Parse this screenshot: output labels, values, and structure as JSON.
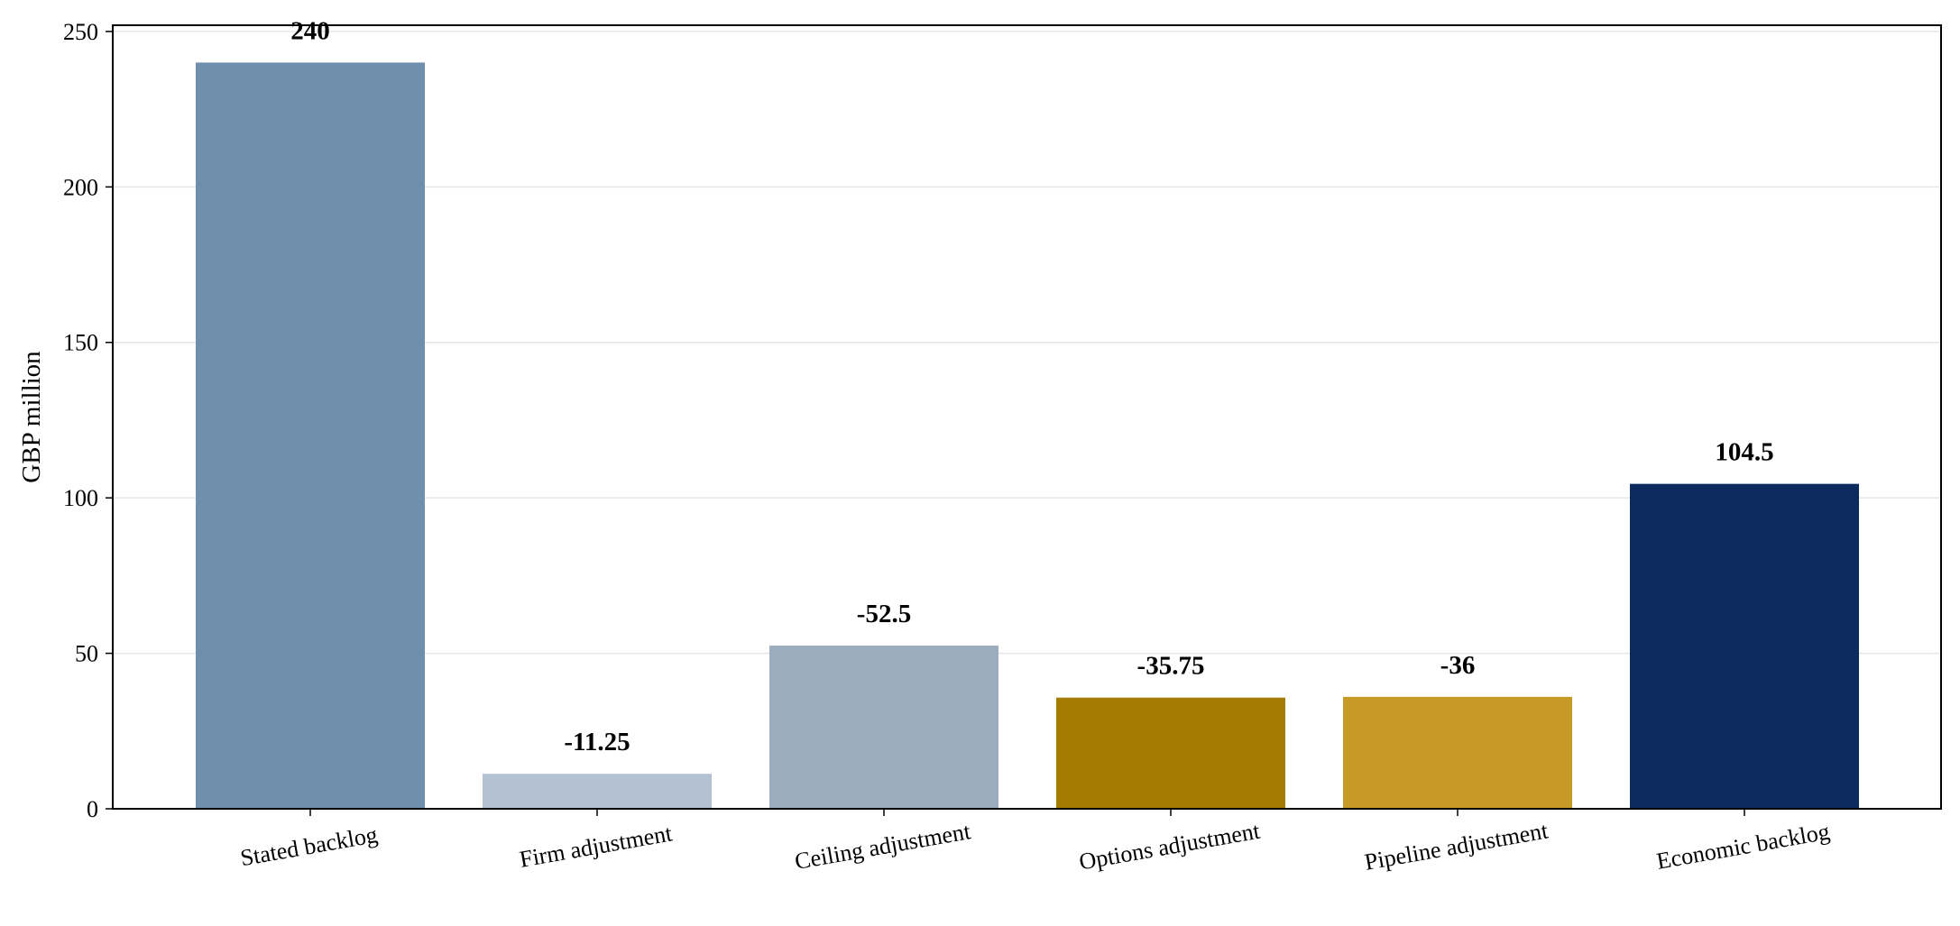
{
  "chart_data": {
    "type": "bar",
    "title": "",
    "xlabel": "",
    "ylabel": "GBP million",
    "ylim": [
      0,
      252
    ],
    "yticks": [
      0,
      50,
      100,
      150,
      200,
      250
    ],
    "grid": "horizontal",
    "categories": [
      "Stated backlog",
      "Firm adjustment",
      "Ceiling adjustment",
      "Options adjustment",
      "Pipeline adjustment",
      "Economic backlog"
    ],
    "values": [
      240,
      11.25,
      52.5,
      35.75,
      36,
      104.5
    ],
    "labels": [
      "240",
      "-11.25",
      "-52.5",
      "-35.75",
      "-36",
      "104.5"
    ],
    "colors": [
      "#6f8fad",
      "#b4c1d2",
      "#9dadc0",
      "#a67c00",
      "#c79a28",
      "#0b2a5e"
    ]
  }
}
